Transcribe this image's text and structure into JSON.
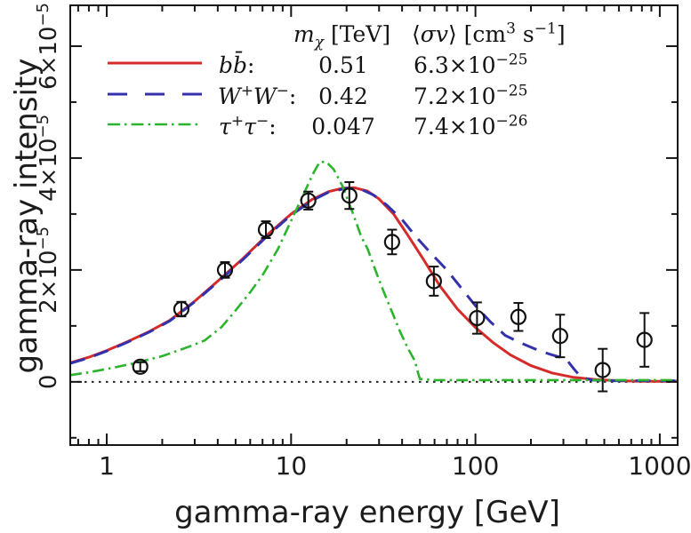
{
  "figure": {
    "background": "#ffffff",
    "frame_color": "#161616"
  },
  "legend": {
    "header_mass": {
      "m": "m",
      "sub": "χ",
      "rest": " [TeV]"
    },
    "header_sigma": {
      "pre1": "⟨",
      "sv": "σv",
      "pre2": "⟩ [cm",
      "sup1": "3",
      "mid": " s",
      "sup2": "−1",
      "post": "]"
    },
    "rows": [
      {
        "key": "b-bbar",
        "l1": "b",
        "sup1": "",
        "l2": "b̄",
        "sup2": "",
        "colon": ":",
        "mass": "0.51",
        "sig_base": "6.3×10",
        "sig_exp": "−25"
      },
      {
        "key": "w-plus-w-minus",
        "l1": "W",
        "sup1": "+",
        "l2": "W",
        "sup2": "−",
        "colon": ":",
        "mass": "0.42",
        "sig_base": "7.2×10",
        "sig_exp": "−25"
      },
      {
        "key": "tau-plus-tau-minus",
        "l1": "τ",
        "sup1": "+",
        "l2": "τ",
        "sup2": "−",
        "colon": ":",
        "mass": "0.047",
        "sig_base": "7.4×10",
        "sig_exp": "−26"
      }
    ]
  },
  "chart_data": {
    "type": "line",
    "title": "",
    "xlabel": "gamma-ray energy [GeV]",
    "ylabel": "gamma-ray intensity",
    "x_scale": "log",
    "xlim": [
      0.634,
      1250
    ],
    "ylim_e5": [
      -1.13,
      6.73
    ],
    "y_unit": "×10⁻⁵",
    "grid": false,
    "zero_line_dotted": true,
    "x_ticks": [
      {
        "v": 1,
        "label": "1"
      },
      {
        "v": 10,
        "label": "10"
      },
      {
        "v": 100,
        "label": "100"
      },
      {
        "v": 1000,
        "label": "1000"
      }
    ],
    "y_ticks": [
      {
        "v": 0,
        "base": "0",
        "exp": ""
      },
      {
        "v": 2,
        "base": "2×10",
        "exp": "−5"
      },
      {
        "v": 4,
        "base": "4×10",
        "exp": "−5"
      },
      {
        "v": 6,
        "base": "6×10",
        "exp": "−5"
      }
    ],
    "y_minor_ticks": [
      -1,
      1,
      3,
      5
    ],
    "series": [
      {
        "name": "b bbar annihilation model (m_chi 0.51 TeV, sigma-v 6.3e-25 cm3/s)",
        "color": "#d62b2b",
        "line": "solid",
        "width": 3,
        "x": [
          0.634,
          0.8,
          1.0,
          1.3,
          1.7,
          2.2,
          3.0,
          4.0,
          5.5,
          7.5,
          10,
          13,
          16,
          19,
          22,
          26,
          30,
          36,
          43,
          52,
          64,
          80,
          100,
          125,
          155,
          200,
          260,
          340,
          450,
          600,
          800,
          1250
        ],
        "y_e5": [
          0.34,
          0.44,
          0.56,
          0.72,
          0.9,
          1.1,
          1.44,
          1.8,
          2.21,
          2.64,
          3.0,
          3.26,
          3.4,
          3.46,
          3.47,
          3.41,
          3.27,
          3.0,
          2.62,
          2.2,
          1.72,
          1.3,
          0.97,
          0.7,
          0.48,
          0.29,
          0.16,
          0.08,
          0.04,
          0.02,
          0.01,
          0.01
        ]
      },
      {
        "name": "W+ W- annihilation model (m_chi 0.42 TeV, sigma-v 7.2e-25 cm3/s)",
        "color": "#3431ac",
        "line": "dashed",
        "width": 3,
        "x": [
          0.634,
          0.8,
          1.0,
          1.3,
          1.7,
          2.2,
          3.0,
          4.0,
          5.5,
          7.5,
          10,
          13,
          16,
          20,
          24,
          28,
          33,
          40,
          48,
          58,
          70,
          85,
          100,
          120,
          145,
          175,
          210,
          255,
          310,
          340,
          375,
          430,
          520,
          700,
          1250
        ],
        "y_e5": [
          0.33,
          0.43,
          0.55,
          0.71,
          0.89,
          1.09,
          1.43,
          1.78,
          2.19,
          2.62,
          2.98,
          3.24,
          3.39,
          3.46,
          3.44,
          3.34,
          3.16,
          2.9,
          2.58,
          2.28,
          2.0,
          1.65,
          1.36,
          1.08,
          0.83,
          0.7,
          0.59,
          0.49,
          0.41,
          0.24,
          0.08,
          0.03,
          0.02,
          0.02,
          0.02
        ]
      },
      {
        "name": "tau+ tau- annihilation model (m_chi 0.047 TeV, sigma-v 7.4e-26 cm3/s)",
        "color": "#2db42d",
        "line": "dashdot",
        "width": 2.6,
        "x": [
          0.634,
          0.8,
          1.0,
          1.4,
          2.0,
          2.8,
          3.4,
          4.2,
          4.9,
          6.0,
          7.1,
          8.5,
          10.3,
          11.5,
          12.4,
          13.3,
          14.3,
          15.5,
          17,
          19,
          21.7,
          24,
          26,
          29,
          32,
          36,
          39,
          43,
          47,
          48.5,
          50,
          60,
          100,
          300,
          1250
        ],
        "y_e5": [
          0.12,
          0.17,
          0.23,
          0.33,
          0.46,
          0.63,
          0.74,
          0.98,
          1.24,
          1.6,
          1.94,
          2.38,
          2.97,
          3.3,
          3.54,
          3.75,
          3.93,
          3.93,
          3.8,
          3.5,
          3.0,
          2.6,
          2.38,
          1.95,
          1.59,
          1.18,
          0.9,
          0.6,
          0.37,
          0.19,
          0.05,
          0.03,
          0.03,
          0.03,
          0.03
        ]
      }
    ],
    "points": {
      "name": "observed gamma-ray data with error bars",
      "marker": "open-circle",
      "color": "#111111",
      "x": [
        1.52,
        2.54,
        4.38,
        7.3,
        12.4,
        20.7,
        35.3,
        59.5,
        102,
        171,
        288,
        490,
        826
      ],
      "y_e5": [
        0.27,
        1.3,
        2.0,
        2.72,
        3.24,
        3.33,
        2.5,
        1.8,
        1.14,
        1.16,
        0.82,
        0.21,
        0.75
      ],
      "yerr_e5": [
        0.08,
        0.13,
        0.14,
        0.15,
        0.16,
        0.24,
        0.22,
        0.26,
        0.28,
        0.25,
        0.38,
        0.38,
        0.48
      ]
    }
  }
}
